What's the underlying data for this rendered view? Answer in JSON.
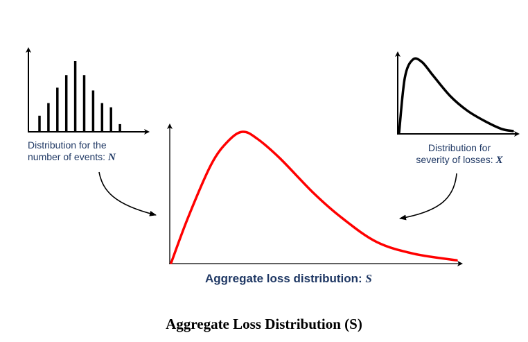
{
  "n_label": {
    "line1": "Distribution for the",
    "line2": "number of events: ",
    "var": "N"
  },
  "x_label": {
    "line1": "Distribution for",
    "line2": "severity of losses: ",
    "var": "X"
  },
  "s_label": {
    "text": "Aggregate loss distribution: ",
    "var": "S"
  },
  "caption": "Aggregate Loss Distribution (S)",
  "colors": {
    "aggregate_curve": "#ff0000",
    "label_text": "#1f3864",
    "axis": "#000000"
  },
  "chart_data": [
    {
      "type": "bar",
      "title": "",
      "description_label": "Distribution for the number of events: N",
      "values": [
        0.22,
        0.4,
        0.62,
        0.8,
        1.0,
        0.8,
        0.58,
        0.4,
        0.34,
        0.1
      ]
    },
    {
      "type": "line",
      "title": "",
      "description_label": "Distribution for severity of losses: X",
      "x": [
        0,
        0.05,
        0.12,
        0.2,
        0.3,
        0.45,
        0.6,
        0.75,
        0.9,
        1.0
      ],
      "y": [
        0,
        0.75,
        1.0,
        0.97,
        0.78,
        0.5,
        0.3,
        0.16,
        0.05,
        0.02
      ]
    },
    {
      "type": "line",
      "title": "",
      "description_label": "Aggregate loss distribution: S",
      "x": [
        0,
        0.06,
        0.14,
        0.2,
        0.25,
        0.3,
        0.38,
        0.5,
        0.6,
        0.72,
        0.85,
        1.0
      ],
      "y": [
        0,
        0.35,
        0.75,
        0.93,
        1.0,
        0.95,
        0.8,
        0.53,
        0.34,
        0.16,
        0.07,
        0.02
      ]
    }
  ]
}
